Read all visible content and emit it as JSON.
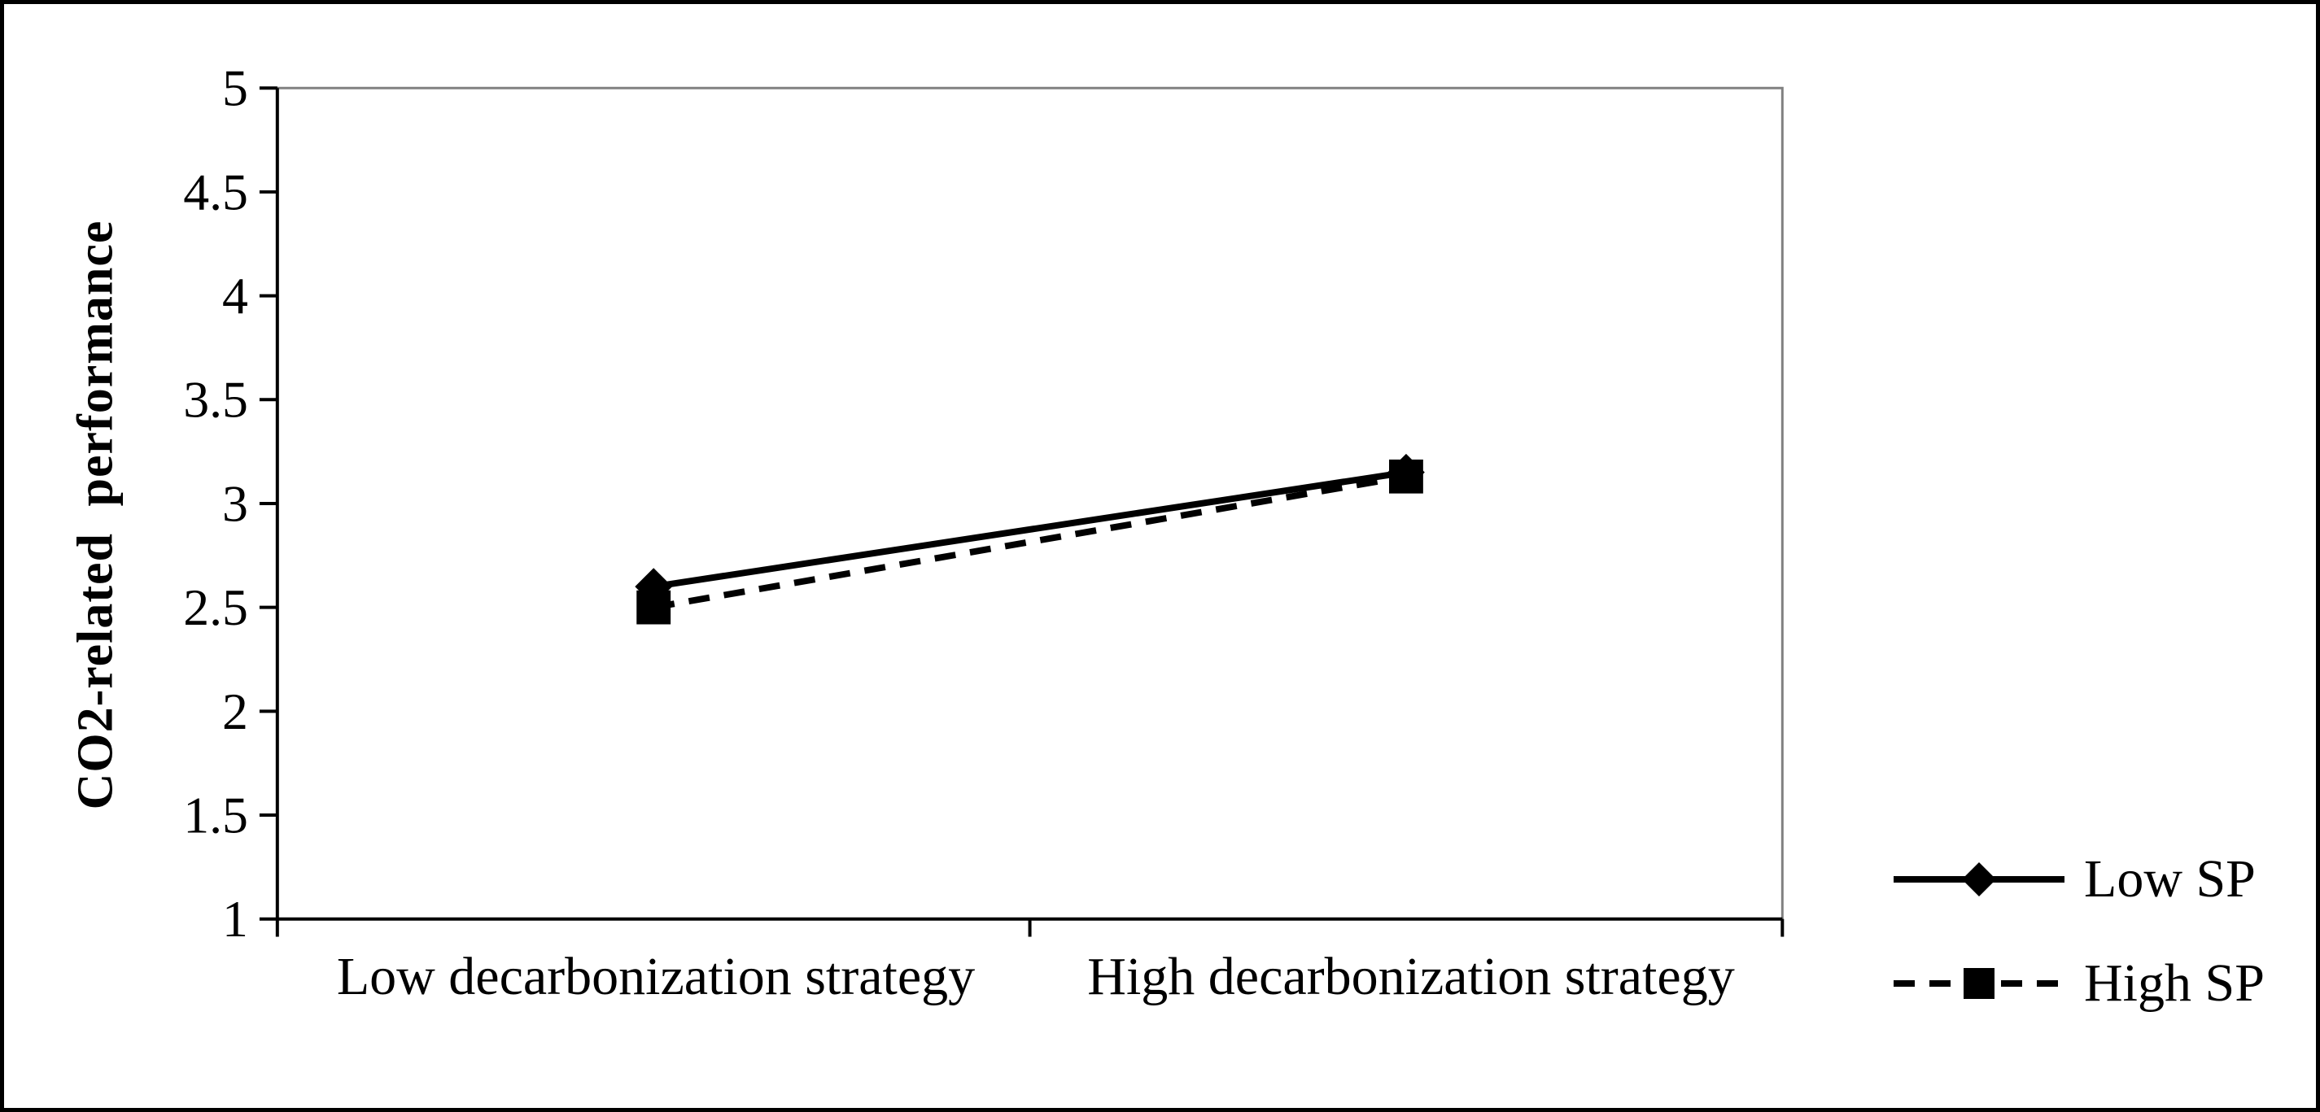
{
  "figure": {
    "background": "#ffffff",
    "border_color": "#000000"
  },
  "chart_data": {
    "type": "line",
    "title": "",
    "xlabel": "",
    "ylabel": "CO2-related performance",
    "categories": [
      "Low decarbonization strategy",
      "High decarbonization strategy"
    ],
    "series": [
      {
        "name": "Low SP",
        "values": [
          2.6,
          3.15
        ],
        "line_style": "solid",
        "marker": "diamond",
        "color": "#000000"
      },
      {
        "name": "High SP",
        "values": [
          2.5,
          3.13
        ],
        "line_style": "dashed",
        "marker": "square",
        "color": "#000000"
      }
    ],
    "ylim": [
      1,
      5
    ],
    "yticks": [
      5,
      4.5,
      4,
      3.5,
      3,
      2.5,
      2,
      1.5,
      1
    ],
    "grid": false,
    "legend_position": "right-bottom",
    "axis_color": "#000000",
    "plot_border_color": "#808080"
  }
}
